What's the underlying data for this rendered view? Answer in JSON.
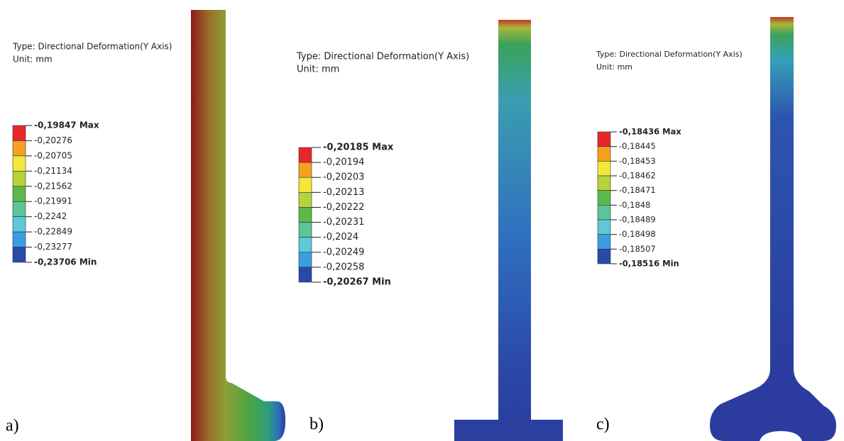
{
  "panels": [
    {
      "label": "a)",
      "type_text": "Type: Directional Deformation(Y Axis)",
      "unit_text": "Unit: mm",
      "legend": [
        "-0,19847 Max",
        "-0,20276",
        "-0,20705",
        "-0,21134",
        "-0,21562",
        "-0,21991",
        "-0,2242",
        "-0,22849",
        "-0,23277",
        "-0,23706 Min"
      ]
    },
    {
      "label": "b)",
      "type_text": "Type: Directional Deformation(Y Axis)",
      "unit_text": "Unit: mm",
      "legend": [
        "-0,20185 Max",
        "-0,20194",
        "-0,20203",
        "-0,20213",
        "-0,20222",
        "-0,20231",
        "-0,2024",
        "-0,20249",
        "-0,20258",
        "-0,20267 Min"
      ]
    },
    {
      "label": "c)",
      "type_text": "Type: Directional Deformation(Y Axis)",
      "unit_text": "Unit: mm",
      "legend": [
        "-0,18436 Max",
        "-0,18445",
        "-0,18453",
        "-0,18462",
        "-0,18471",
        "-0,1848",
        "-0,18489",
        "-0,18498",
        "-0,18507",
        "-0,18516 Min"
      ]
    }
  ]
}
